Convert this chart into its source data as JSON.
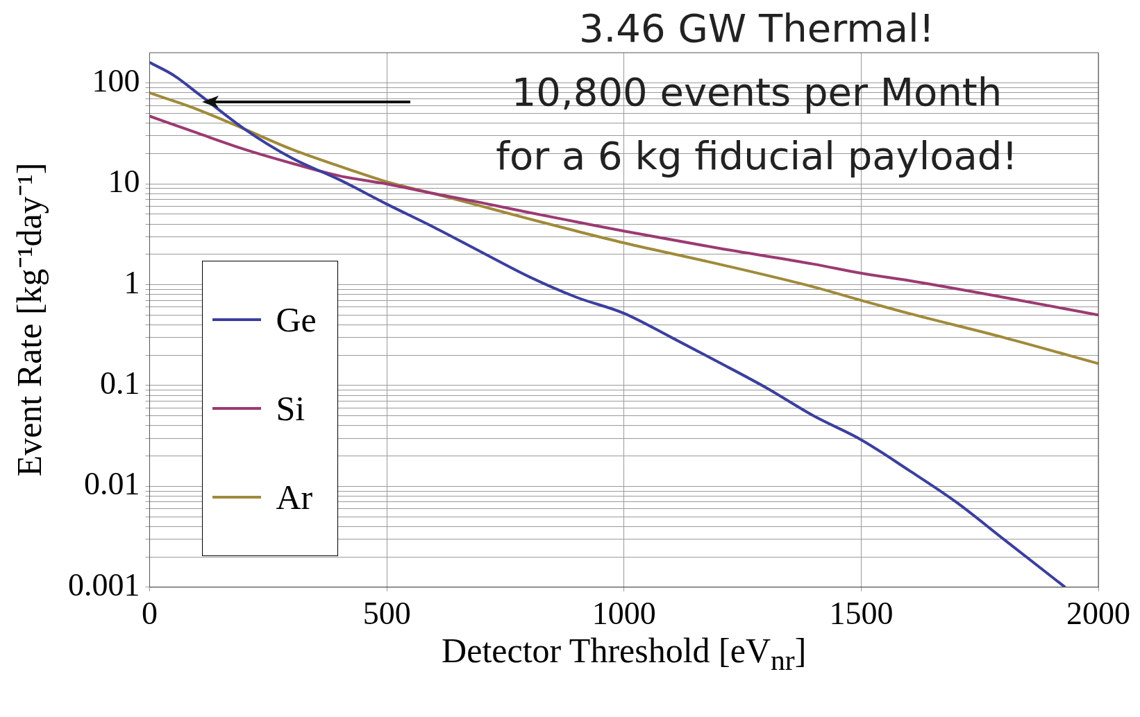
{
  "chart_data": {
    "type": "line",
    "xlabel": "Detector Threshold [eV$_{nr}$]",
    "ylabel": "Event Rate [kg⁻¹day⁻¹]",
    "annotations": [
      "3.46 GW Thermal!",
      "10,800 events per Month",
      "for a 6 kg fiducial payload!"
    ],
    "log": "y",
    "grid": true,
    "legend": "left",
    "marker": "none",
    "line_style": "solid",
    "xlim": [
      0,
      2000
    ],
    "xticks": [
      0,
      500,
      1000,
      1500,
      2000
    ],
    "ylim": [
      0.001,
      200
    ],
    "yticks": [
      0.001,
      {
        "value": 0.002,
        "label": null
      },
      {
        "value": 0.003,
        "label": null
      },
      {
        "value": 0.004,
        "label": null
      },
      {
        "value": 0.005,
        "label": null
      },
      {
        "value": 0.006,
        "label": null
      },
      {
        "value": 0.007,
        "label": null
      },
      {
        "value": 0.008,
        "label": null
      },
      {
        "value": 0.009,
        "label": null
      },
      0.01,
      {
        "value": 0.02,
        "label": null
      },
      {
        "value": 0.03,
        "label": null
      },
      {
        "value": 0.04,
        "label": null
      },
      {
        "value": 0.05,
        "label": null
      },
      {
        "value": 0.06,
        "label": null
      },
      {
        "value": 0.07,
        "label": null
      },
      {
        "value": 0.08,
        "label": null
      },
      {
        "value": 0.09,
        "label": null
      },
      0.1,
      {
        "value": 0.2,
        "label": null
      },
      {
        "value": 0.3,
        "label": null
      },
      {
        "value": 0.4,
        "label": null
      },
      {
        "value": 0.5,
        "label": null
      },
      {
        "value": 0.6,
        "label": null
      },
      {
        "value": 0.7,
        "label": null
      },
      {
        "value": 0.8,
        "label": null
      },
      {
        "value": 0.9,
        "label": null
      },
      1,
      {
        "value": 2,
        "label": null
      },
      {
        "value": 3,
        "label": null
      },
      {
        "value": 4,
        "label": null
      },
      {
        "value": 5,
        "label": null
      },
      {
        "value": 6,
        "label": null
      },
      {
        "value": 7,
        "label": null
      },
      {
        "value": 8,
        "label": null
      },
      {
        "value": 9,
        "label": null
      },
      10,
      {
        "value": 20,
        "label": null
      },
      {
        "value": 30,
        "label": null
      },
      {
        "value": 40,
        "label": null
      },
      {
        "value": 50,
        "label": null
      },
      {
        "value": 60,
        "label": null
      },
      {
        "value": 70,
        "label": null
      },
      {
        "value": 80,
        "label": null
      },
      {
        "value": 90,
        "label": null
      },
      100
    ],
    "series": [
      {
        "name": "Ge",
        "color": "#3b3f9e",
        "x": [
          0,
          50,
          100,
          200,
          300,
          400,
          500,
          600,
          700,
          800,
          900,
          1000,
          1100,
          1200,
          1300,
          1400,
          1500,
          1600,
          1700,
          1800,
          1930
        ],
        "values": [
          160,
          120,
          80,
          35,
          18,
          11,
          6.3,
          3.7,
          2.1,
          1.2,
          0.75,
          0.52,
          0.3,
          0.17,
          0.095,
          0.05,
          0.029,
          0.0145,
          0.007,
          0.003,
          0.001
        ]
      },
      {
        "name": "Si",
        "color": "#9b3a72",
        "x": [
          0,
          100,
          200,
          300,
          400,
          500,
          600,
          700,
          800,
          900,
          1000,
          1200,
          1400,
          1500,
          1600,
          1800,
          2000
        ],
        "values": [
          47,
          32,
          22,
          16,
          12,
          10,
          8,
          6.5,
          5.2,
          4.2,
          3.4,
          2.3,
          1.6,
          1.3,
          1.1,
          0.75,
          0.5
        ]
      },
      {
        "name": "Ar",
        "color": "#a08a3a",
        "x": [
          0,
          100,
          200,
          300,
          400,
          500,
          600,
          700,
          800,
          900,
          1000,
          1200,
          1400,
          1500,
          1600,
          1800,
          2000
        ],
        "values": [
          80,
          55,
          35,
          22,
          15,
          10.5,
          8,
          6,
          4.5,
          3.4,
          2.6,
          1.6,
          0.95,
          0.7,
          0.52,
          0.3,
          0.165
        ]
      }
    ]
  }
}
